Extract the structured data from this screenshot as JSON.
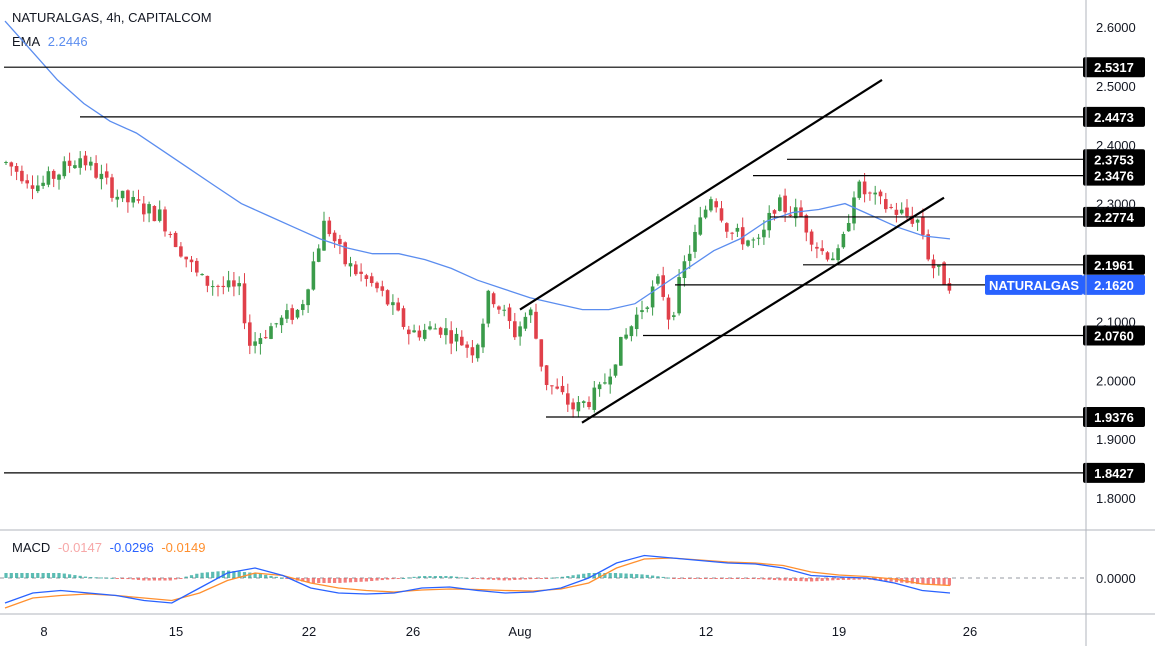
{
  "header": {
    "symbol": "NATURALGAS, 4h, CAPITALCOM",
    "ema_label": "EMA",
    "ema_value": "2.2446",
    "macd_label": "MACD",
    "macd_hist_value": "-0.0147",
    "macd_line_value": "-0.0296",
    "macd_signal_value": "-0.0149"
  },
  "colors": {
    "up": "#26a69a",
    "up_candle": "#3a9b4a",
    "down": "#e0404a",
    "ema": "#5b8def",
    "macd": "#2962ff",
    "signal": "#ff8f2e",
    "hist_up": "#26a69a",
    "hist_down": "#ef5350",
    "price_tag": "#2962ff",
    "level_tag": "#000000"
  },
  "chart_data": {
    "type": "candlestick",
    "symbol": "NATURALGAS",
    "timeframe": "4h",
    "x_ticks": [
      "8",
      "15",
      "22",
      "26",
      "Aug",
      "12",
      "19",
      "26"
    ],
    "y_ticks": [
      "2.6000",
      "2.5000",
      "2.4000",
      "2.3000",
      "2.1000",
      "2.0000",
      "1.9000",
      "1.8000"
    ],
    "ylim": [
      1.76,
      2.63
    ],
    "last_price": {
      "label": "NATURALGAS",
      "value": "2.1620"
    },
    "levels": [
      "2.5317",
      "2.4473",
      "2.3753",
      "2.3476",
      "2.2774",
      "2.1961",
      "2.0760",
      "1.9376",
      "1.8427"
    ],
    "trend_channel": "ascending",
    "ema_period_value": "2.2446",
    "ema": [
      2.61,
      2.56,
      2.51,
      2.47,
      2.44,
      2.42,
      2.39,
      2.36,
      2.33,
      2.3,
      2.28,
      2.26,
      2.24,
      2.225,
      2.215,
      2.215,
      2.205,
      2.19,
      2.17,
      2.155,
      2.14,
      2.13,
      2.12,
      2.12,
      2.13,
      2.16,
      2.19,
      2.22,
      2.24,
      2.27,
      2.285,
      2.29,
      2.3,
      2.28,
      2.26,
      2.245,
      2.24
    ],
    "macd_panel": {
      "zero_label": "0.0000",
      "macd": [
        -0.05,
        -0.03,
        -0.025,
        -0.03,
        -0.035,
        -0.045,
        -0.05,
        -0.02,
        0.01,
        0.02,
        0.005,
        -0.02,
        -0.03,
        -0.032,
        -0.03,
        -0.02,
        -0.018,
        -0.025,
        -0.03,
        -0.028,
        -0.02,
        0.0,
        0.03,
        0.045,
        0.04,
        0.035,
        0.03,
        0.028,
        0.02,
        0.005,
        0.002,
        0.0,
        -0.01,
        -0.025,
        -0.03
      ],
      "signal": [
        -0.06,
        -0.04,
        -0.035,
        -0.032,
        -0.035,
        -0.04,
        -0.045,
        -0.03,
        -0.005,
        0.01,
        0.005,
        -0.01,
        -0.02,
        -0.025,
        -0.028,
        -0.024,
        -0.022,
        -0.023,
        -0.025,
        -0.026,
        -0.022,
        -0.01,
        0.02,
        0.038,
        0.04,
        0.036,
        0.032,
        0.03,
        0.025,
        0.012,
        0.006,
        0.003,
        -0.002,
        -0.012,
        -0.015
      ]
    }
  }
}
